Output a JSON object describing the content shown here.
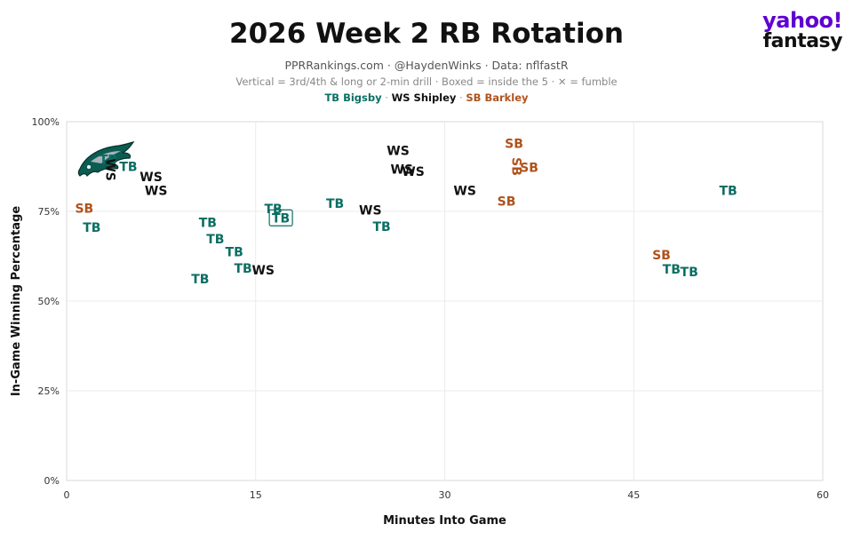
{
  "header": {
    "title": "2026 Week 2 RB Rotation",
    "subtitle": "PPRRankings.com · @HaydenWinks · Data: nflfastR",
    "note": "Vertical = 3rd/4th & long or 2-min drill · Boxed = inside the 5 · ✕ = fumble",
    "legend": [
      {
        "label": "TB Bigsby",
        "color": "#0b6e63"
      },
      {
        "label": "WS Shipley",
        "color": "#111111"
      },
      {
        "label": "SB Barkley",
        "color": "#b0521c"
      }
    ],
    "legend_sep": " · "
  },
  "logo": {
    "line1": "yahoo!",
    "line2": "fantasy"
  },
  "team_logo_icon": "eagle-head-icon",
  "chart_data": {
    "type": "scatter",
    "xlabel": "Minutes Into Game",
    "ylabel": "In-Game Winning Percentage",
    "xlim": [
      0,
      60
    ],
    "ylim": [
      0,
      100
    ],
    "x_ticks": [
      0,
      15,
      30,
      45,
      60
    ],
    "y_ticks": [
      0,
      25,
      50,
      75,
      100
    ],
    "y_tick_labels": [
      "0%",
      "25%",
      "50%",
      "75%",
      "100%"
    ],
    "grid": true,
    "colors": {
      "TB": "#0b6e63",
      "WS": "#111111",
      "SB": "#b0521c"
    },
    "series": [
      {
        "name": "TB Bigsby",
        "label": "TB",
        "points": [
          {
            "x": 3.3,
            "y": 89.5
          },
          {
            "x": 4.9,
            "y": 87.5
          },
          {
            "x": 2.0,
            "y": 70.5
          },
          {
            "x": 11.2,
            "y": 71.9
          },
          {
            "x": 11.8,
            "y": 67.3
          },
          {
            "x": 13.3,
            "y": 63.7
          },
          {
            "x": 14.0,
            "y": 59.2
          },
          {
            "x": 10.6,
            "y": 56.2
          },
          {
            "x": 16.4,
            "y": 75.7
          },
          {
            "x": 17.0,
            "y": 73.2,
            "boxed": true
          },
          {
            "x": 21.3,
            "y": 77.2
          },
          {
            "x": 25.0,
            "y": 70.8
          },
          {
            "x": 52.5,
            "y": 80.8
          },
          {
            "x": 48.0,
            "y": 58.9
          },
          {
            "x": 49.4,
            "y": 58.2
          }
        ]
      },
      {
        "name": "WS Shipley",
        "label": "WS",
        "points": [
          {
            "x": 3.5,
            "y": 86.6,
            "vertical": true
          },
          {
            "x": 6.7,
            "y": 84.6
          },
          {
            "x": 7.1,
            "y": 80.8
          },
          {
            "x": 15.6,
            "y": 58.7
          },
          {
            "x": 24.1,
            "y": 75.4
          },
          {
            "x": 26.3,
            "y": 91.9
          },
          {
            "x": 26.6,
            "y": 86.8
          },
          {
            "x": 27.5,
            "y": 86.2
          },
          {
            "x": 31.6,
            "y": 80.8
          }
        ]
      },
      {
        "name": "SB Barkley",
        "label": "SB",
        "points": [
          {
            "x": 1.4,
            "y": 75.9
          },
          {
            "x": 35.5,
            "y": 93.9
          },
          {
            "x": 35.7,
            "y": 87.5,
            "vertical": true
          },
          {
            "x": 36.7,
            "y": 87.2
          },
          {
            "x": 34.9,
            "y": 77.9
          },
          {
            "x": 47.2,
            "y": 62.9
          }
        ]
      }
    ]
  }
}
